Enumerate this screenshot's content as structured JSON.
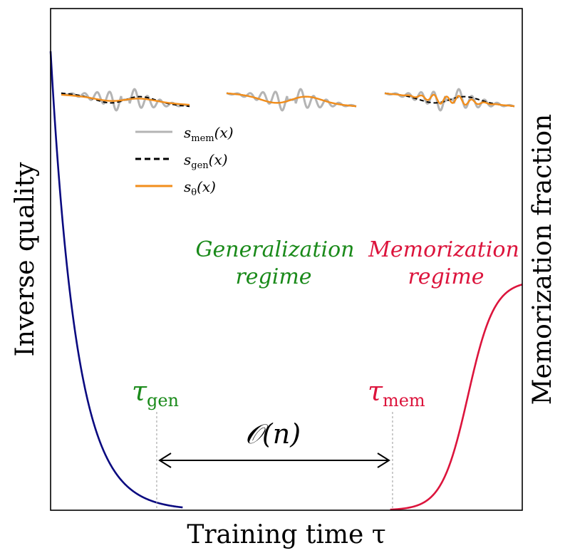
{
  "chart_data": {
    "type": "line",
    "title": "",
    "xlabel": "Training time τ",
    "ylabel_left": "Inverse quality",
    "ylabel_right": "Memorization fraction",
    "x_range": [
      0,
      1
    ],
    "y_range": [
      0,
      1
    ],
    "grid": false,
    "colors": {
      "inverse_quality": "#0a0a80",
      "memorization": "#dc143c",
      "generalization_text": "#1a8a1a",
      "s_mem": "#b4b4b4",
      "s_gen": "#000000",
      "s_theta": "#f28e1c",
      "marker_line": "#999999",
      "arrow": "#000000"
    },
    "series": [
      {
        "key": "inverse_quality",
        "points": [
          [
            0.0,
            1.0
          ],
          [
            0.03,
            0.62
          ],
          [
            0.06,
            0.39
          ],
          [
            0.09,
            0.24
          ],
          [
            0.12,
            0.14
          ],
          [
            0.15,
            0.08
          ],
          [
            0.18,
            0.045
          ],
          [
            0.21,
            0.02
          ],
          [
            0.24,
            0.006
          ],
          [
            0.27,
            0.0
          ],
          [
            1.0,
            0.0
          ]
        ]
      },
      {
        "key": "memorization",
        "points": [
          [
            0.0,
            0.0
          ],
          [
            0.73,
            0.0
          ],
          [
            0.77,
            0.006
          ],
          [
            0.8,
            0.02
          ],
          [
            0.83,
            0.06
          ],
          [
            0.86,
            0.14
          ],
          [
            0.89,
            0.27
          ],
          [
            0.92,
            0.39
          ],
          [
            0.95,
            0.46
          ],
          [
            0.98,
            0.49
          ],
          [
            1.0,
            0.5
          ]
        ]
      }
    ],
    "markers": [
      {
        "x": 0.225,
        "label": "τ",
        "sub": "gen",
        "color_key": "generalization_text"
      },
      {
        "x": 0.725,
        "label": "τ",
        "sub": "mem",
        "color_key": "memorization"
      }
    ],
    "arrow_label": "𝒪(n)",
    "regimes": [
      {
        "line1": "Generalization",
        "line2": "regime",
        "color_key": "generalization_text"
      },
      {
        "line1": "Memorization",
        "line2": "regime",
        "color_key": "memorization"
      }
    ],
    "legend": [
      {
        "key": "s_mem",
        "base": "s",
        "sub": "mem",
        "arg": "(x)",
        "style": "solid"
      },
      {
        "key": "s_gen",
        "base": "s",
        "sub": "gen",
        "arg": "(x)",
        "style": "dashed"
      },
      {
        "key": "s_theta",
        "base": "s",
        "sub": "θ",
        "arg": "(x)",
        "style": "solid"
      }
    ],
    "insets": [
      {
        "fit": "generalization_undertrained"
      },
      {
        "fit": "generalization"
      },
      {
        "fit": "memorization"
      }
    ]
  }
}
